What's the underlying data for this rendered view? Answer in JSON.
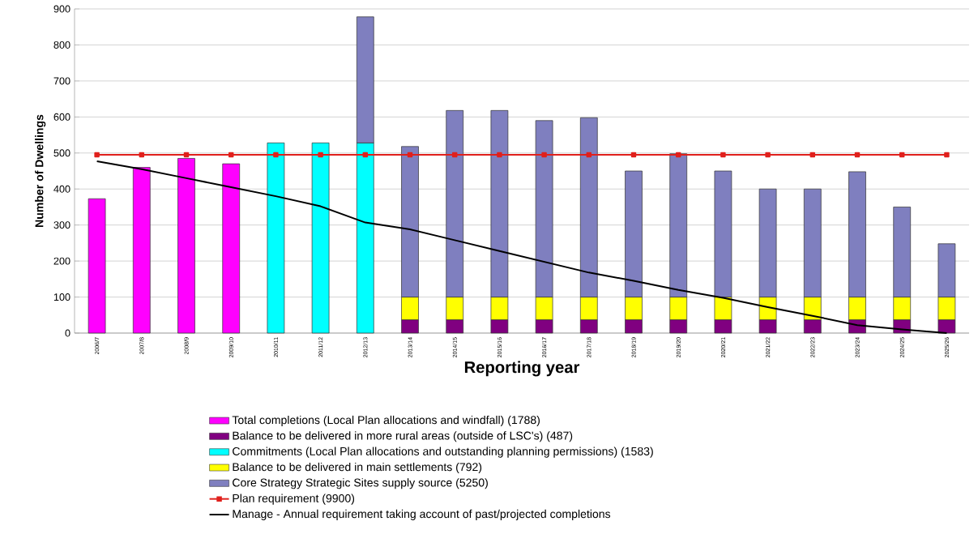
{
  "chart_data": {
    "type": "bar",
    "stacked": true,
    "xlabel": "Reporting year",
    "ylabel": "Number of Dwellings",
    "categories": [
      "2006/7",
      "2007/8",
      "2008/9",
      "2009/10",
      "2010/11",
      "2011/12",
      "2012/13",
      "2013/14",
      "2014/15",
      "2015/16",
      "2016/17",
      "2017/18",
      "2018/19",
      "2019/20",
      "2020/21",
      "2021/22",
      "2022/23",
      "2023/24",
      "2024/25",
      "2025/26"
    ],
    "series": [
      {
        "name": "Total completions (Local Plan allocations and windfall) (1788)",
        "color": "#ff00ff",
        "values": [
          373,
          460,
          485,
          470,
          null,
          null,
          null,
          null,
          null,
          null,
          null,
          null,
          null,
          null,
          null,
          null,
          null,
          null,
          null,
          null
        ]
      },
      {
        "name": "Balance to be delivered in more rural areas (outside of LSC's) (487)",
        "color": "#800080",
        "values": [
          null,
          null,
          null,
          null,
          null,
          null,
          null,
          37,
          37,
          37,
          37,
          37,
          37,
          37,
          37,
          37,
          37,
          37,
          37,
          37
        ]
      },
      {
        "name": "Commitments (Local Plan allocations and outstanding planning permissions) (1583)",
        "color": "#00ffff",
        "values": [
          null,
          null,
          null,
          null,
          528,
          528,
          528,
          null,
          null,
          null,
          null,
          null,
          null,
          null,
          null,
          null,
          null,
          null,
          null,
          null
        ]
      },
      {
        "name": "Balance to be delivered in main settlements (792)",
        "color": "#ffff00",
        "values": [
          null,
          null,
          null,
          null,
          null,
          null,
          null,
          63,
          63,
          63,
          63,
          63,
          63,
          63,
          63,
          63,
          63,
          63,
          63,
          63
        ]
      },
      {
        "name": "Core Strategy Strategic Sites supply source (5250)",
        "color": "#7f7fbf",
        "values": [
          null,
          null,
          null,
          null,
          null,
          null,
          350,
          418,
          518,
          518,
          490,
          498,
          350,
          398,
          350,
          300,
          300,
          348,
          250,
          148
        ]
      },
      {
        "name": "Plan requirement (9900)",
        "type": "line",
        "color": "#e0201c",
        "marker": "square",
        "values": [
          495,
          495,
          495,
          495,
          495,
          495,
          495,
          495,
          495,
          495,
          495,
          495,
          495,
          495,
          495,
          495,
          495,
          495,
          495,
          495
        ]
      },
      {
        "name": "Manage - Annual requirement taking account of past/projected completions",
        "type": "line",
        "color": "#000000",
        "marker": "none",
        "values": [
          477,
          455,
          430,
          405,
          380,
          352,
          307,
          288,
          258,
          228,
          198,
          168,
          145,
          120,
          98,
          72,
          48,
          22,
          10,
          0
        ]
      }
    ],
    "ylim": [
      0,
      900
    ],
    "yticks": [
      0,
      100,
      200,
      300,
      400,
      500,
      600,
      700,
      800,
      900
    ],
    "grid": "y",
    "legend": "bottom"
  }
}
